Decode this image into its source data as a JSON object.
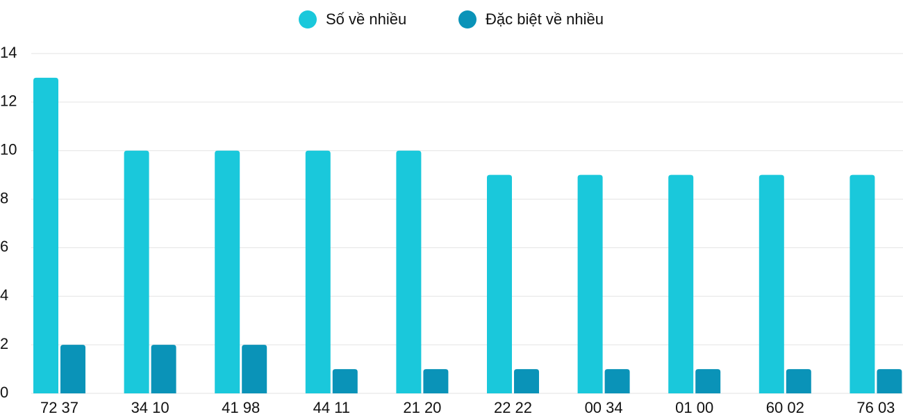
{
  "chart_data": {
    "type": "bar",
    "categories": [
      "72 37",
      "34 10",
      "41 98",
      "44 11",
      "21 20",
      "22 22",
      "00 34",
      "01 00",
      "60 02",
      "76 03"
    ],
    "series": [
      {
        "name": "Số về nhiều",
        "color": "#1ac8db",
        "values": [
          13,
          10,
          10,
          10,
          10,
          9,
          9,
          9,
          9,
          9
        ]
      },
      {
        "name": "Đặc biệt về nhiều",
        "color": "#0a93b8",
        "values": [
          2,
          2,
          2,
          1,
          1,
          1,
          1,
          1,
          1,
          1
        ]
      }
    ],
    "ylim": [
      0,
      14
    ],
    "yticks": [
      0,
      2,
      4,
      6,
      8,
      10,
      12,
      14
    ],
    "grid": true,
    "legend": "top"
  }
}
